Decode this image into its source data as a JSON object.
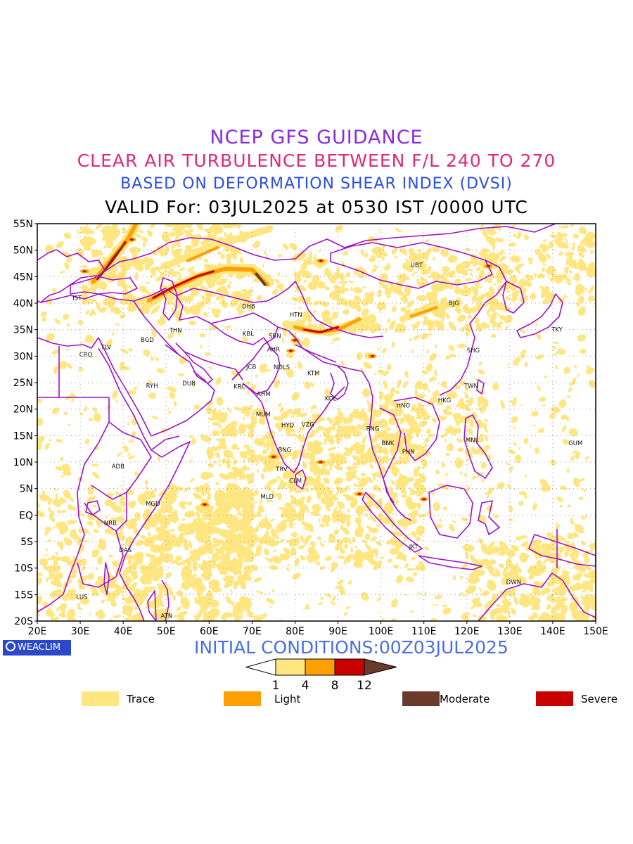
{
  "titles": {
    "line1": "NCEP GFS GUIDANCE",
    "line2": "CLEAR AIR TURBULENCE BETWEEN F/L 240 TO 270",
    "line3": "BASED ON DEFORMATION SHEAR INDEX (DVSI)",
    "line4": "VALID For: 03JUL2025 at 0530 IST /0000 UTC"
  },
  "map": {
    "lon_range": [
      20,
      150
    ],
    "lat_range": [
      -20,
      55
    ],
    "lat_ticks": [
      "55N",
      "50N",
      "45N",
      "40N",
      "35N",
      "30N",
      "25N",
      "20N",
      "15N",
      "10N",
      "5N",
      "EQ",
      "5S",
      "10S",
      "15S",
      "20S"
    ],
    "lon_ticks": [
      "20E",
      "30E",
      "40E",
      "50E",
      "60E",
      "70E",
      "80E",
      "90E",
      "100E",
      "110E",
      "120E",
      "130E",
      "140E",
      "150E"
    ],
    "grid": true,
    "stations": [
      {
        "code": "UBT",
        "lon": 108.3,
        "lat": 47.2
      },
      {
        "code": "BJG",
        "lon": 117.0,
        "lat": 40.0
      },
      {
        "code": "TKY",
        "lon": 141.0,
        "lat": 35.0
      },
      {
        "code": "IST",
        "lon": 29.3,
        "lat": 41.0
      },
      {
        "code": "DHB",
        "lon": 69.2,
        "lat": 39.4
      },
      {
        "code": "HTN",
        "lon": 80.2,
        "lat": 37.8
      },
      {
        "code": "THN",
        "lon": 52.2,
        "lat": 34.9
      },
      {
        "code": "KBL",
        "lon": 69.1,
        "lat": 34.2
      },
      {
        "code": "SRN",
        "lon": 75.3,
        "lat": 33.8
      },
      {
        "code": "BGD",
        "lon": 45.6,
        "lat": 33.1
      },
      {
        "code": "TLV",
        "lon": 36.0,
        "lat": 31.7
      },
      {
        "code": "CRO",
        "lon": 31.3,
        "lat": 30.3
      },
      {
        "code": "AHR",
        "lon": 75.0,
        "lat": 31.3
      },
      {
        "code": "SHG",
        "lon": 121.5,
        "lat": 31.1
      },
      {
        "code": "JCB",
        "lon": 69.8,
        "lat": 28.0
      },
      {
        "code": "NDLS",
        "lon": 76.9,
        "lat": 27.9
      },
      {
        "code": "KTM",
        "lon": 84.3,
        "lat": 26.8
      },
      {
        "code": "RYH",
        "lon": 46.7,
        "lat": 24.4
      },
      {
        "code": "DUB",
        "lon": 55.3,
        "lat": 24.9
      },
      {
        "code": "KRC",
        "lon": 67.1,
        "lat": 24.3
      },
      {
        "code": "TWN",
        "lon": 121.0,
        "lat": 24.4
      },
      {
        "code": "AHM",
        "lon": 72.7,
        "lat": 22.9
      },
      {
        "code": "KOL",
        "lon": 88.3,
        "lat": 22.0
      },
      {
        "code": "HKG",
        "lon": 114.8,
        "lat": 21.7
      },
      {
        "code": "HNO",
        "lon": 105.2,
        "lat": 20.7
      },
      {
        "code": "MUM",
        "lon": 72.6,
        "lat": 19.0
      },
      {
        "code": "HYD",
        "lon": 78.3,
        "lat": 17.0
      },
      {
        "code": "VZG",
        "lon": 83.0,
        "lat": 17.1
      },
      {
        "code": "RNG",
        "lon": 98.1,
        "lat": 16.3
      },
      {
        "code": "MNL",
        "lon": 121.2,
        "lat": 14.2
      },
      {
        "code": "GUM",
        "lon": 145.3,
        "lat": 13.6
      },
      {
        "code": "BNK",
        "lon": 101.6,
        "lat": 13.6
      },
      {
        "code": "BNG",
        "lon": 77.6,
        "lat": 12.3
      },
      {
        "code": "PHN",
        "lon": 106.4,
        "lat": 12.0
      },
      {
        "code": "ADB",
        "lon": 38.8,
        "lat": 9.2
      },
      {
        "code": "TRV",
        "lon": 76.9,
        "lat": 8.7
      },
      {
        "code": "CLM",
        "lon": 80.1,
        "lat": 6.5
      },
      {
        "code": "MLD",
        "lon": 73.5,
        "lat": 3.5
      },
      {
        "code": "MGD",
        "lon": 46.9,
        "lat": 2.2
      },
      {
        "code": "NRB",
        "lon": 37.0,
        "lat": -1.5
      },
      {
        "code": "DAS",
        "lon": 40.5,
        "lat": -6.6
      },
      {
        "code": "JKT",
        "lon": 107.6,
        "lat": -5.9
      },
      {
        "code": "DWN",
        "lon": 130.9,
        "lat": -12.6
      },
      {
        "code": "LUS",
        "lon": 30.4,
        "lat": -15.4
      },
      {
        "code": "ATN",
        "lon": 50.1,
        "lat": -19.0
      }
    ]
  },
  "init_conditions": "INITIAL CONDITIONS:00Z03JUL2025",
  "logo_text": "WEACLIM",
  "colorbar": {
    "thresholds": [
      "1",
      "4",
      "8",
      "12"
    ],
    "colors": [
      "#ffffff",
      "#ffe680",
      "#ffa000",
      "#c80000",
      "#6b3a2a"
    ]
  },
  "legend": [
    {
      "label": "Trace",
      "color": "#ffe680"
    },
    {
      "label": "Light",
      "color": "#ffa000"
    },
    {
      "label": "Moderate",
      "color": "#6b3a2a"
    },
    {
      "label": "Severe",
      "color": "#c80000"
    }
  ],
  "colors": {
    "border": "#a010c8",
    "trace": "#ffe680",
    "light": "#ffa000",
    "severe": "#c80000",
    "moderate": "#6b3a2a"
  }
}
